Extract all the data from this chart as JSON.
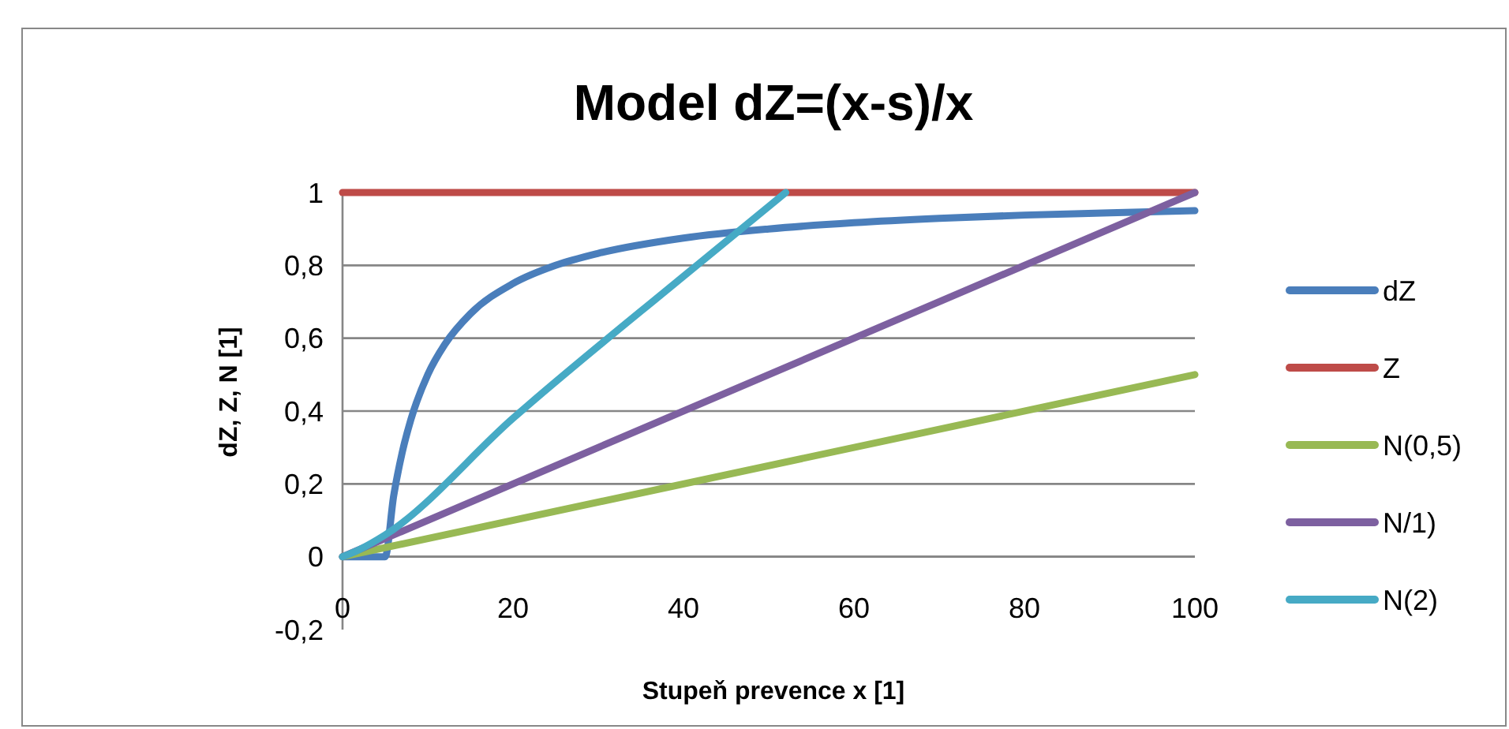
{
  "chart_data": {
    "type": "line",
    "title": "Model dZ=(x-s)/x",
    "xlabel": "Stupeň prevence x [1]",
    "ylabel": "dZ, Z, N [1]",
    "xlim": [
      0,
      100
    ],
    "xticks": [
      0,
      20,
      40,
      60,
      80,
      100
    ],
    "ylim": [
      -0.2,
      1
    ],
    "yticks": [
      {
        "value": -0.2,
        "label": "-0,2"
      },
      0,
      {
        "value": 0.2,
        "label": "0,2"
      },
      {
        "value": 0.4,
        "label": "0,4"
      },
      {
        "value": 0.6,
        "label": "0,6"
      },
      {
        "value": 0.8,
        "label": "0,8"
      },
      1
    ],
    "grid": "y",
    "legend": "right",
    "marker": "none",
    "line_style": "solid",
    "series": [
      {
        "name": "dZ",
        "color": "#4a7ebb",
        "x": [
          0,
          1,
          2,
          3,
          4,
          5,
          6,
          7,
          8,
          10,
          12,
          15,
          20,
          25,
          30,
          40,
          50,
          60,
          70,
          80,
          90,
          100
        ],
        "values": [
          0,
          0,
          0,
          0,
          0,
          0,
          0.167,
          0.286,
          0.375,
          0.5,
          0.583,
          0.667,
          0.75,
          0.8,
          0.833,
          0.875,
          0.9,
          0.917,
          0.929,
          0.938,
          0.944,
          0.95
        ]
      },
      {
        "name": "Z",
        "color": "#be4b48",
        "x": [
          0,
          100
        ],
        "values": [
          1,
          1
        ]
      },
      {
        "name": "N(0,5)",
        "color": "#98b954",
        "x": [
          0,
          100
        ],
        "values": [
          0,
          0.5
        ]
      },
      {
        "name": "N/1)",
        "color": "#7d60a0",
        "x": [
          0,
          100
        ],
        "values": [
          0,
          1
        ]
      },
      {
        "name": "N(2)",
        "color": "#46aac5",
        "x": [
          0,
          2,
          5,
          20,
          40,
          52
        ],
        "values": [
          0,
          0.02,
          0.06,
          0.38,
          0.77,
          1
        ]
      }
    ]
  }
}
